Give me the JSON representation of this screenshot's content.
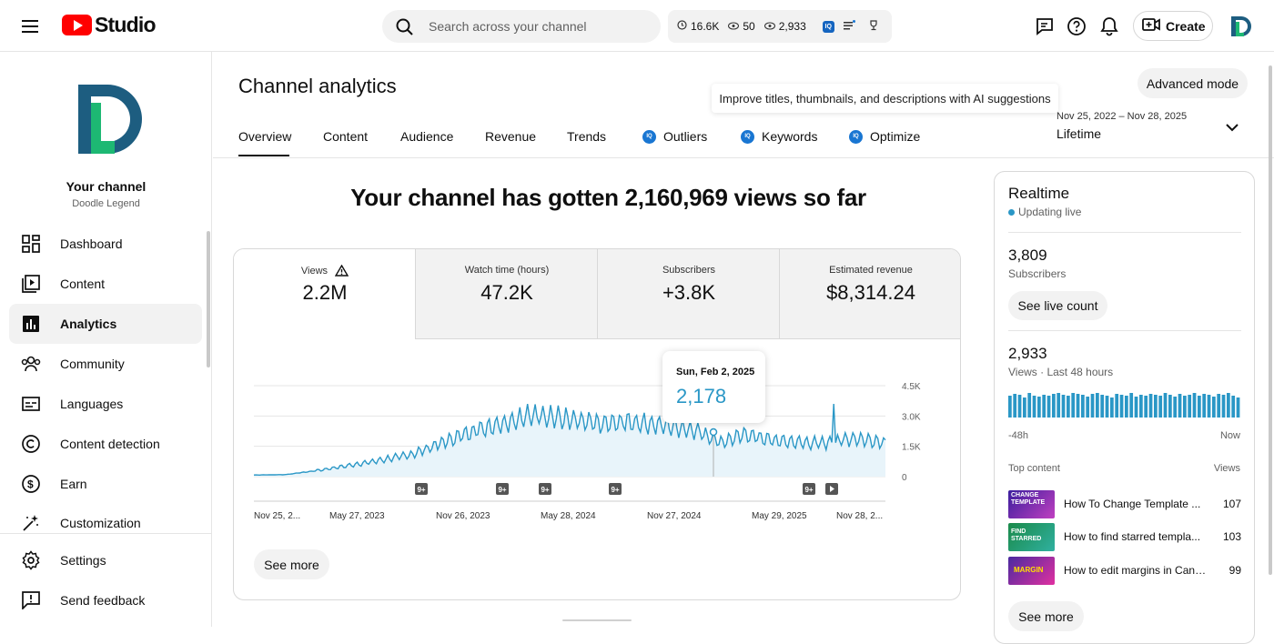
{
  "app": {
    "name": "Studio"
  },
  "header": {
    "search_placeholder": "Search across your channel",
    "stats": {
      "watch": "16.6K",
      "eye_small": "50",
      "views": "2,933"
    },
    "create_label": "Create"
  },
  "sidebar": {
    "channel_title": "Your channel",
    "channel_name": "Doodle Legend",
    "items": [
      {
        "label": "Dashboard"
      },
      {
        "label": "Content"
      },
      {
        "label": "Analytics"
      },
      {
        "label": "Community"
      },
      {
        "label": "Languages"
      },
      {
        "label": "Content detection"
      },
      {
        "label": "Earn"
      },
      {
        "label": "Customization"
      },
      {
        "label": "Settings"
      },
      {
        "label": "Send feedback"
      }
    ]
  },
  "main": {
    "title": "Channel analytics",
    "advanced_label": "Advanced mode",
    "ai_tooltip": "Improve titles, thumbnails, and descriptions with AI suggestions",
    "date_range": "Nov 25, 2022 – Nov 28, 2025",
    "date_label": "Lifetime",
    "tabs": [
      {
        "label": "Overview"
      },
      {
        "label": "Content"
      },
      {
        "label": "Audience"
      },
      {
        "label": "Revenue"
      },
      {
        "label": "Trends"
      },
      {
        "label": "Outliers"
      },
      {
        "label": "Keywords"
      },
      {
        "label": "Optimize"
      }
    ],
    "headline": "Your channel has gotten 2,160,969 views so far",
    "metrics": [
      {
        "label": "Views",
        "value": "2.2M"
      },
      {
        "label": "Watch time (hours)",
        "value": "47.2K"
      },
      {
        "label": "Subscribers",
        "value": "+3.8K"
      },
      {
        "label": "Estimated revenue",
        "value": "$8,314.24"
      }
    ],
    "tooltip": {
      "date": "Sun, Feb 2, 2025",
      "value": "2,178"
    },
    "see_more": "See more"
  },
  "chart_data": {
    "type": "area",
    "x_ticks": [
      "Nov 25, 2...",
      "May 27, 2023",
      "Nov 26, 2023",
      "May 28, 2024",
      "Nov 27, 2024",
      "May 29, 2025",
      "Nov 28, 2..."
    ],
    "y_ticks": [
      "4.5K",
      "3.0K",
      "1.5K",
      "0"
    ],
    "ylim": [
      0,
      4500
    ],
    "markers": [
      "9+",
      "9+",
      "9+",
      "9+",
      "9+",
      "play"
    ],
    "trend": [
      [
        0,
        80
      ],
      [
        0.05,
        100
      ],
      [
        0.1,
        300
      ],
      [
        0.18,
        700
      ],
      [
        0.25,
        1100
      ],
      [
        0.3,
        1700
      ],
      [
        0.35,
        2300
      ],
      [
        0.4,
        2700
      ],
      [
        0.45,
        3100
      ],
      [
        0.5,
        2800
      ],
      [
        0.55,
        2600
      ],
      [
        0.6,
        2700
      ],
      [
        0.66,
        2500
      ],
      [
        0.7,
        2300
      ],
      [
        0.74,
        1700
      ],
      [
        0.78,
        2100
      ],
      [
        0.82,
        1800
      ],
      [
        0.86,
        1700
      ],
      [
        0.9,
        1650
      ],
      [
        0.95,
        1900
      ],
      [
        1.0,
        1700
      ]
    ],
    "series": [
      {
        "name": "Views"
      }
    ]
  },
  "realtime": {
    "title": "Realtime",
    "status": "Updating live",
    "subs_value": "3,809",
    "subs_label": "Subscribers",
    "live_btn": "See live count",
    "views_value": "2,933",
    "views_label": "Views · Last 48 hours",
    "bar_left": "-48h",
    "bar_right": "Now",
    "bars": [
      24,
      26,
      25,
      22,
      27,
      24,
      23,
      25,
      24,
      26,
      27,
      25,
      24,
      27,
      26,
      25,
      23,
      26,
      27,
      25,
      24,
      22,
      26,
      25,
      24,
      27,
      23,
      25,
      24,
      26,
      25,
      24,
      27,
      25,
      23,
      26,
      24,
      25,
      27,
      24,
      26,
      25,
      23,
      26,
      25,
      27,
      24,
      22
    ],
    "top_content_label": "Top content",
    "views_col": "Views",
    "top": [
      {
        "title": "How To Change Template ...",
        "views": "107",
        "thumb_text": "CHANGE TEMPLATE"
      },
      {
        "title": "How to find starred templa...",
        "views": "103",
        "thumb_text": "FIND STARRED"
      },
      {
        "title": "How to edit margins in Canv...",
        "views": "99",
        "thumb_text": "MARGIN"
      }
    ],
    "see_more": "See more"
  }
}
